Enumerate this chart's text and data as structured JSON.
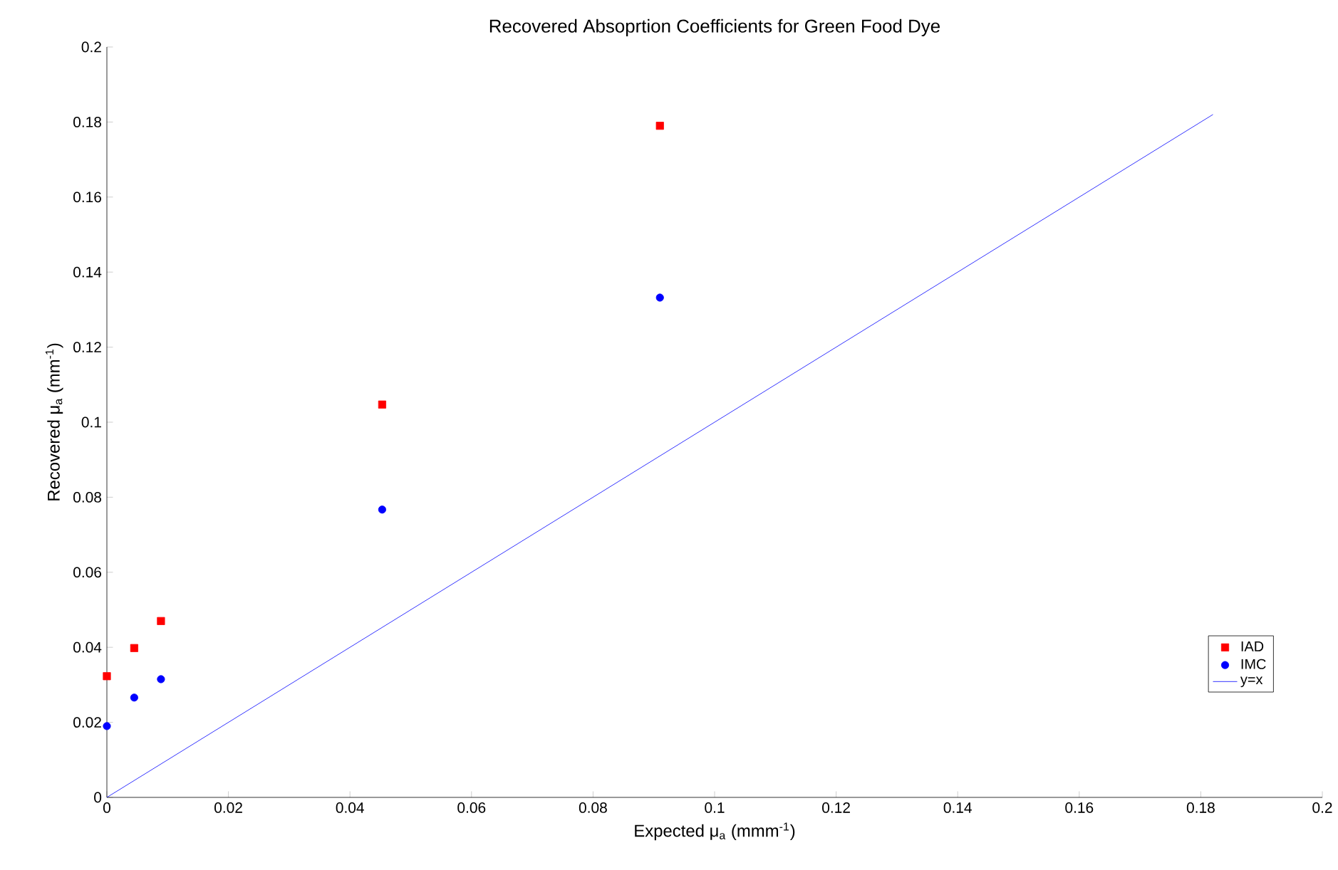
{
  "chart_data": {
    "type": "scatter",
    "title": "Recovered Absoprtion Coefficients for Green Food Dye",
    "xlabel": "Expected μ$_{a}$ (mmm$^{-1}$)",
    "ylabel": "Recovered μ$_{a}$ (mm$^{-1}$)",
    "xlim": [
      0,
      0.2
    ],
    "ylim": [
      0,
      0.2
    ],
    "xticks": [
      0,
      0.02,
      0.04,
      0.06,
      0.08,
      0.1,
      0.12,
      0.14,
      0.16,
      0.18,
      0.2
    ],
    "yticks": [
      0,
      0.02,
      0.04,
      0.06,
      0.08,
      0.1,
      0.12,
      0.14,
      0.16,
      0.18,
      0.2
    ],
    "grid": false,
    "legend": "bottom right",
    "series": [
      {
        "name": "IAD",
        "marker": "square",
        "color": "#ff0000",
        "x": [
          0,
          0.0045,
          0.0089,
          0.0453,
          0.091
        ],
        "values": [
          0.0323,
          0.0398,
          0.047,
          0.1047,
          0.179
        ]
      },
      {
        "name": "IMC",
        "marker": "circle",
        "color": "#0000ff",
        "x": [
          0,
          0.0045,
          0.0089,
          0.0453,
          0.091
        ],
        "values": [
          0.019,
          0.0266,
          0.0315,
          0.0767,
          0.1332
        ]
      },
      {
        "name": "y=x",
        "type": "line",
        "marker": "none",
        "line_style": "solid",
        "color": "#0000ff",
        "x": [
          0,
          0.182
        ],
        "values": [
          0,
          0.182
        ]
      }
    ]
  }
}
